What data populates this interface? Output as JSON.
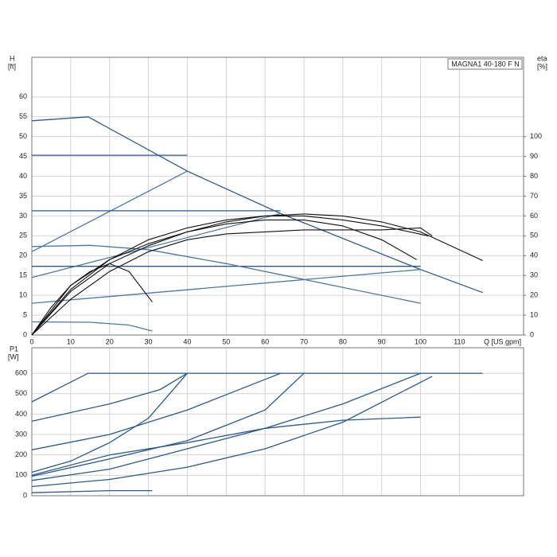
{
  "chart_data": [
    {
      "type": "line",
      "title": "MAGNA1 40-180 F N",
      "ylabel": "H",
      "yunit": "[ft]",
      "y2label": "eta",
      "y2unit": "[%]",
      "xlabel": "Q [US gpm]",
      "xlim": [
        0,
        126.5
      ],
      "xticks": [
        0,
        10,
        20,
        30,
        40,
        50,
        60,
        70,
        80,
        90,
        100,
        110
      ],
      "ylim": [
        0,
        70
      ],
      "yticks": [
        0,
        5,
        10,
        15,
        20,
        25,
        30,
        35,
        40,
        45,
        50,
        55,
        60
      ],
      "y2lim": [
        0,
        140
      ],
      "y2ticks": [
        0,
        10,
        20,
        30,
        40,
        50,
        60,
        70,
        80,
        90,
        100
      ],
      "grid": true,
      "series": [
        {
          "color": "#2a5a8e",
          "x": [
            0,
            14.5,
            40,
            64,
            100,
            116
          ],
          "values": [
            54,
            55,
            41.3,
            30.6,
            16.5,
            10.7
          ]
        },
        {
          "color": "#4a78a8",
          "x": [
            0,
            40
          ],
          "values": [
            21,
            41.3
          ]
        },
        {
          "color": "#2a5a8e",
          "x": [
            0,
            40
          ],
          "values": [
            45.3,
            45.3
          ]
        },
        {
          "color": "#2a5a8e",
          "x": [
            0,
            64
          ],
          "values": [
            31.3,
            31.3
          ]
        },
        {
          "color": "#4a78a8",
          "x": [
            0,
            64
          ],
          "values": [
            14.5,
            30.6
          ]
        },
        {
          "color": "#2a5a8e",
          "x": [
            0,
            100
          ],
          "values": [
            17.3,
            17.3
          ]
        },
        {
          "color": "#4a78a8",
          "x": [
            0,
            100
          ],
          "values": [
            8,
            16.5
          ]
        },
        {
          "color": "#4a78a8",
          "x": [
            0,
            15,
            30,
            50,
            70,
            100
          ],
          "values": [
            22.3,
            22.6,
            21.5,
            18,
            14,
            8
          ]
        },
        {
          "color": "#4a78a8",
          "x": [
            0,
            15,
            25,
            31
          ],
          "values": [
            3.3,
            3.2,
            2.5,
            1
          ]
        },
        {
          "color": "#111111",
          "axis": "y2",
          "x": [
            0,
            10,
            20,
            30,
            40,
            50,
            60,
            70,
            80,
            90,
            100,
            116
          ],
          "values": [
            0,
            25,
            38,
            46,
            52,
            57,
            60,
            61,
            60,
            57,
            52,
            37.5
          ]
        },
        {
          "color": "#111111",
          "axis": "y2",
          "x": [
            0,
            5,
            10,
            15,
            20,
            25,
            31
          ],
          "values": [
            0,
            14,
            25,
            32,
            36,
            32,
            16.6
          ]
        },
        {
          "color": "#111111",
          "axis": "y2",
          "x": [
            0,
            10,
            20,
            30,
            40,
            50,
            60,
            70,
            80,
            90,
            99
          ],
          "values": [
            0,
            22,
            36,
            45,
            52,
            56,
            58,
            58,
            55,
            48,
            38
          ]
        },
        {
          "color": "#111111",
          "axis": "y2",
          "x": [
            0,
            10,
            20,
            30,
            40,
            50,
            60,
            70,
            80,
            90,
            100,
            103
          ],
          "values": [
            0,
            18,
            32,
            42,
            48,
            51,
            52,
            53,
            53,
            53,
            54,
            50
          ]
        },
        {
          "color": "#111111",
          "axis": "y2",
          "x": [
            0,
            10,
            20,
            30,
            40,
            50,
            60,
            70,
            80,
            90,
            102
          ],
          "values": [
            0,
            23,
            38,
            48,
            54,
            58,
            60,
            60,
            58,
            55,
            50
          ]
        }
      ]
    },
    {
      "type": "line",
      "ylabel": "P1",
      "yunit": "[W]",
      "xlim": [
        0,
        126.5
      ],
      "xticks": [
        0,
        10,
        20,
        30,
        40,
        50,
        60,
        70,
        80,
        90,
        100,
        110
      ],
      "ylim": [
        0,
        725
      ],
      "yticks": [
        0,
        100,
        200,
        300,
        400,
        500,
        600
      ],
      "grid": true,
      "series": [
        {
          "color": "#2a5a8e",
          "x": [
            0,
            14.5,
            116
          ],
          "values": [
            460,
            600,
            600
          ]
        },
        {
          "color": "#2a5a8e",
          "x": [
            0,
            20,
            33,
            40
          ],
          "values": [
            365,
            450,
            520,
            600
          ]
        },
        {
          "color": "#2a5a8e",
          "x": [
            0,
            20,
            40,
            60,
            64
          ],
          "values": [
            225,
            300,
            420,
            570,
            600
          ]
        },
        {
          "color": "#2a5a8e",
          "x": [
            0,
            10,
            20,
            30,
            40
          ],
          "values": [
            115,
            170,
            260,
            380,
            600
          ]
        },
        {
          "color": "#2a5a8e",
          "x": [
            0,
            20,
            40,
            60,
            70
          ],
          "values": [
            95,
            180,
            270,
            420,
            600
          ]
        },
        {
          "color": "#2a5a8e",
          "x": [
            0,
            20,
            40,
            60,
            80,
            100
          ],
          "values": [
            100,
            200,
            260,
            330,
            370,
            385
          ]
        },
        {
          "color": "#2a5a8e",
          "x": [
            0,
            20,
            40,
            60,
            80,
            100
          ],
          "values": [
            75,
            130,
            230,
            330,
            450,
            600
          ]
        },
        {
          "color": "#2a5a8e",
          "x": [
            0,
            20,
            40,
            60,
            80,
            103
          ],
          "values": [
            45,
            80,
            140,
            230,
            360,
            585
          ]
        },
        {
          "color": "#2a5a8e",
          "x": [
            0,
            20,
            31
          ],
          "values": [
            15,
            25,
            25
          ]
        }
      ]
    }
  ]
}
